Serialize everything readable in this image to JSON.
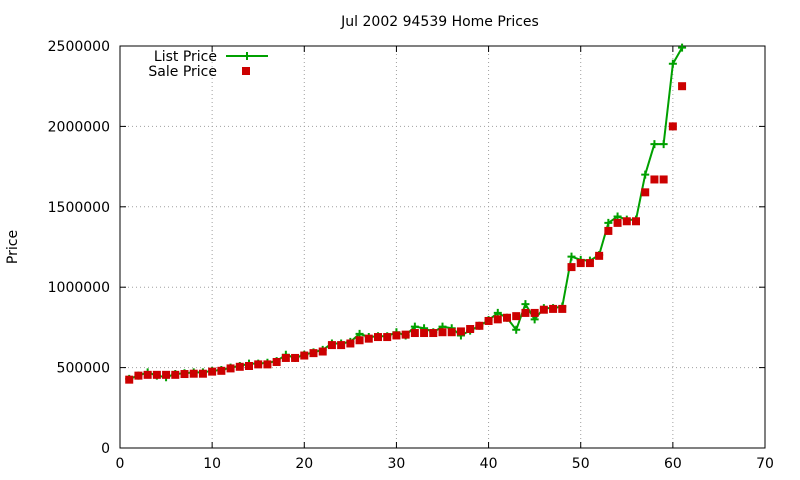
{
  "chart_data": {
    "type": "line",
    "title": "Jul 2002 94539 Home Prices",
    "xlabel": "",
    "ylabel": "Price",
    "xlim": [
      0,
      70
    ],
    "ylim": [
      0,
      2500000
    ],
    "xticks": [
      0,
      10,
      20,
      30,
      40,
      50,
      60,
      70
    ],
    "yticks": [
      0,
      500000,
      1000000,
      1500000,
      2000000,
      2500000
    ],
    "grid": true,
    "legend_position": "top-left",
    "series": [
      {
        "name": "List Price",
        "style": "line-plus",
        "color": "#00a000",
        "x": [
          1,
          2,
          3,
          4,
          5,
          6,
          7,
          8,
          9,
          10,
          11,
          12,
          13,
          14,
          15,
          16,
          17,
          18,
          19,
          20,
          21,
          22,
          23,
          24,
          25,
          26,
          27,
          28,
          29,
          30,
          31,
          32,
          33,
          34,
          35,
          36,
          37,
          38,
          39,
          40,
          41,
          42,
          43,
          44,
          45,
          46,
          47,
          48,
          49,
          50,
          51,
          52,
          53,
          54,
          55,
          56,
          57,
          58,
          59,
          60,
          61
        ],
        "y": [
          430000,
          450000,
          470000,
          450000,
          440000,
          460000,
          465000,
          470000,
          470000,
          480000,
          485000,
          500000,
          510000,
          525000,
          525000,
          530000,
          540000,
          580000,
          560000,
          580000,
          595000,
          610000,
          650000,
          650000,
          660000,
          710000,
          690000,
          695000,
          695000,
          720000,
          700000,
          755000,
          745000,
          720000,
          755000,
          745000,
          700000,
          730000,
          760000,
          795000,
          840000,
          810000,
          735000,
          895000,
          800000,
          870000,
          870000,
          880000,
          1190000,
          1170000,
          1165000,
          1200000,
          1400000,
          1440000,
          1420000,
          1420000,
          1700000,
          1890000,
          1890000,
          2390000,
          2490000
        ]
      },
      {
        "name": "Sale Price",
        "style": "points-square",
        "color": "#cc0000",
        "x": [
          1,
          2,
          3,
          4,
          5,
          6,
          7,
          8,
          9,
          10,
          11,
          12,
          13,
          14,
          15,
          16,
          17,
          18,
          19,
          20,
          21,
          22,
          23,
          24,
          25,
          26,
          27,
          28,
          29,
          30,
          31,
          32,
          33,
          34,
          35,
          36,
          37,
          38,
          39,
          40,
          41,
          42,
          43,
          44,
          45,
          46,
          47,
          48,
          49,
          50,
          51,
          52,
          53,
          54,
          55,
          56,
          57,
          58,
          59,
          60,
          61
        ],
        "y": [
          425000,
          450000,
          455000,
          455000,
          455000,
          455000,
          460000,
          462000,
          462000,
          475000,
          480000,
          495000,
          505000,
          510000,
          520000,
          520000,
          535000,
          560000,
          560000,
          575000,
          590000,
          600000,
          640000,
          640000,
          650000,
          670000,
          680000,
          690000,
          690000,
          700000,
          705000,
          715000,
          715000,
          715000,
          720000,
          720000,
          725000,
          740000,
          760000,
          790000,
          800000,
          810000,
          820000,
          840000,
          840000,
          860000,
          865000,
          865000,
          1125000,
          1150000,
          1150000,
          1195000,
          1350000,
          1400000,
          1410000,
          1410000,
          1590000,
          1670000,
          1670000,
          2000000,
          2250000
        ]
      }
    ]
  }
}
